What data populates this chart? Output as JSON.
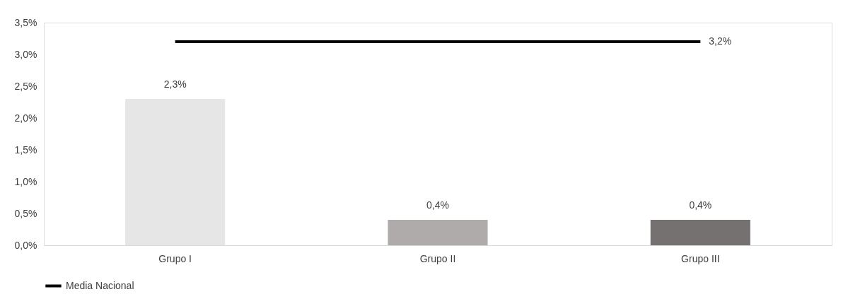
{
  "chart_data": {
    "type": "bar",
    "categories": [
      "Grupo I",
      "Grupo II",
      "Grupo III"
    ],
    "ylim": [
      0,
      3.5
    ],
    "yticks": [
      {
        "value": 0,
        "label": "0,0%"
      },
      {
        "value": 0.5,
        "label": "0,5%"
      },
      {
        "value": 1,
        "label": "1,0%"
      },
      {
        "value": 1.5,
        "label": "1,5%"
      },
      {
        "value": 2,
        "label": "2,0%"
      },
      {
        "value": 2.5,
        "label": "2,5%"
      },
      {
        "value": 3,
        "label": "3,0%"
      },
      {
        "value": 3.5,
        "label": "3,5%"
      }
    ],
    "grid": false,
    "legend": "bottom",
    "series": [
      {
        "colors": [
          "#e7e6e6",
          "#afabab",
          "#767171"
        ],
        "values": [
          2.3,
          0.4,
          0.4
        ],
        "value_labels": [
          "2,3%",
          "0,4%",
          "0,4%"
        ]
      },
      {
        "type": "line",
        "name": "Media Nacional",
        "color": "#000000",
        "values": [
          3.2,
          3.2,
          3.2
        ],
        "value_labels": [
          null,
          null,
          "3,2%"
        ]
      }
    ]
  }
}
